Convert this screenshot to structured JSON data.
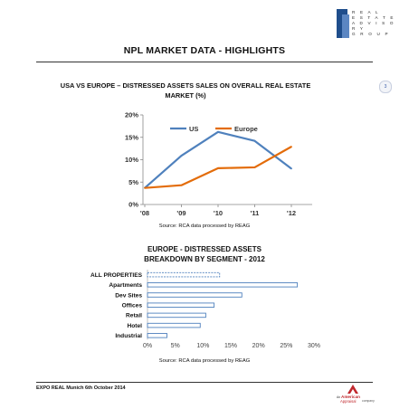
{
  "header": {
    "logo_words": [
      "R E A L",
      "E S T A T E",
      "A D V I S O R Y",
      "G R O U P"
    ],
    "title": "NPL MARKET DATA - HIGHLIGHTS",
    "page_number": "3"
  },
  "section1": {
    "title_line1": "USA VS EUROPE – DISTRESSED ASSETS SALES ON OVERALL REAL ESTATE",
    "title_line2": "MARKET (%)",
    "source": "Source: RCA data processed by REAG"
  },
  "section2": {
    "title_line1": "EUROPE - DISTRESSED ASSETS",
    "title_line2": "BREAKDOWN BY SEGMENT - 2012",
    "source": "Source: RCA data processed by REAG"
  },
  "footer": {
    "text": "EXPO REAL Munich 6th October 2014",
    "logo_an": "An",
    "logo_company": "American",
    "logo_company2": "Appraisal",
    "logo_suffix": "company"
  },
  "colors": {
    "us": "#4f81bd",
    "europe": "#e36c0a",
    "bar_border": "#4f81bd"
  },
  "chart_data": [
    {
      "type": "line",
      "title": "USA VS EUROPE – DISTRESSED ASSETS SALES ON OVERALL REAL ESTATE MARKET (%)",
      "categories": [
        "'08",
        "'09",
        "'10",
        "'11",
        "'12"
      ],
      "y_ticks": [
        "0%",
        "5%",
        "10%",
        "15%",
        "20%"
      ],
      "ylim": [
        0,
        20
      ],
      "legend_position": "top",
      "grid": false,
      "series": [
        {
          "name": "US",
          "values": [
            3.7,
            10.9,
            16.2,
            14.2,
            8.0
          ],
          "color": "#4f81bd"
        },
        {
          "name": "Europe",
          "values": [
            3.7,
            4.3,
            8.1,
            8.3,
            12.9
          ],
          "color": "#e36c0a"
        }
      ]
    },
    {
      "type": "bar",
      "orientation": "horizontal",
      "title": "EUROPE - DISTRESSED ASSETS BREAKDOWN BY SEGMENT - 2012",
      "categories": [
        "ALL PROPERTIES",
        "Apartments",
        "Dev Sites",
        "Offices",
        "Retail",
        "Hotel",
        "Industrial"
      ],
      "values": [
        13.0,
        27.0,
        17.0,
        12.0,
        10.5,
        9.5,
        3.5
      ],
      "x_ticks": [
        "0%",
        "5%",
        "10%",
        "15%",
        "20%",
        "25%",
        "30%"
      ],
      "xlim": [
        0,
        30
      ],
      "grid": false
    }
  ]
}
